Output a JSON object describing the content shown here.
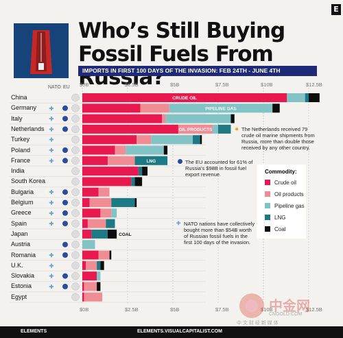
{
  "header": {
    "logo_letter": "E",
    "title_line1": "Who’s Still Buying",
    "title_line2": "Fossil Fuels From Russia?",
    "subtitle": "IMPORTS IN FIRST 100 DAYS OF THE INVASION:  FEB 24TH - JUNE 4TH",
    "col_nato": "NATO",
    "col_eu": "EU"
  },
  "colors": {
    "crude_oil": "#e8194f",
    "oil_products": "#f08c94",
    "pipeline_gas": "#82c3c6",
    "lng": "#1d7a85",
    "coal": "#0d0d0d",
    "nato_marker": "#6ba6d6",
    "eu_marker": "#2a4c9a",
    "subtitle_bg": "#1e2a77"
  },
  "chart_data": {
    "type": "bar",
    "orientation": "horizontal",
    "stacked": true,
    "title": "Who’s Still Buying Fossil Fuels From Russia?",
    "subtitle": "IMPORTS IN FIRST 100 DAYS OF THE INVASION:  FEB 24TH - JUNE 4TH",
    "xlim": [
      0,
      13
    ],
    "x_ticks": [
      "$0B",
      "$2.5B",
      "$5B",
      "$7.5B",
      "$10B",
      "$12.5B"
    ],
    "categories": [
      "China",
      "Germany",
      "Italy",
      "Netherlands",
      "Turkey",
      "Poland",
      "France",
      "India",
      "South Korea",
      "Bulgaria",
      "Belgium",
      "Greece",
      "Spain",
      "Japan",
      "Austria",
      "Romania",
      "U.K.",
      "Slovakia",
      "Estonia",
      "Egypt"
    ],
    "nato": [
      false,
      true,
      true,
      true,
      true,
      true,
      true,
      false,
      false,
      true,
      true,
      true,
      true,
      false,
      false,
      true,
      true,
      true,
      true,
      false
    ],
    "eu": [
      false,
      true,
      true,
      true,
      false,
      true,
      true,
      false,
      false,
      true,
      true,
      true,
      true,
      false,
      true,
      true,
      false,
      true,
      true,
      false
    ],
    "series": [
      {
        "name": "Crude oil",
        "values": [
          11.3,
          3.2,
          4.4,
          5.3,
          3.0,
          1.8,
          1.4,
          3.1,
          2.7,
          0.9,
          0.4,
          1.0,
          0.3,
          0.5,
          0.0,
          0.9,
          0.2,
          0.8,
          0.1,
          0.1
        ]
      },
      {
        "name": "Oil products",
        "values": [
          0.0,
          1.6,
          0.2,
          1.9,
          0.8,
          0.6,
          1.5,
          0.0,
          0.0,
          0.6,
          1.2,
          0.6,
          1.0,
          0.0,
          0.0,
          0.6,
          0.6,
          0.0,
          0.7,
          1.0
        ]
      },
      {
        "name": "Pipeline gas",
        "values": [
          1.0,
          5.7,
          3.6,
          0.3,
          2.3,
          2.1,
          0.0,
          0.0,
          0.0,
          0.0,
          0.0,
          0.3,
          0.0,
          0.0,
          0.7,
          0.0,
          0.0,
          0.2,
          0.0,
          0.0
        ]
      },
      {
        "name": "LNG",
        "values": [
          0.2,
          0.0,
          0.0,
          0.7,
          0.4,
          0.0,
          1.8,
          0.2,
          0.2,
          0.0,
          1.3,
          0.0,
          0.5,
          0.9,
          0.0,
          0.0,
          0.2,
          0.0,
          0.0,
          0.0
        ]
      },
      {
        "name": "Coal",
        "values": [
          0.6,
          0.4,
          0.2,
          0.0,
          0.1,
          0.2,
          0.0,
          0.3,
          0.4,
          0.0,
          0.1,
          0.0,
          0.0,
          0.5,
          0.0,
          0.1,
          0.2,
          0.0,
          0.2,
          0.0
        ]
      }
    ],
    "bar_labels": [
      {
        "row": 0,
        "series": 0,
        "text": "CRUDE OIL"
      },
      {
        "row": 1,
        "series": 2,
        "text": "PIPELINE GAS"
      },
      {
        "row": 3,
        "series": 1,
        "text": "OIL PRODUCTS"
      },
      {
        "row": 6,
        "series": 3,
        "text": "LNG"
      },
      {
        "row": 13,
        "series": 4,
        "text": "COAL"
      }
    ],
    "legend_title": "Commodity:",
    "legend_position": "right"
  },
  "notes": {
    "netherlands": "The Netherlands received 79 crude oil marine shipments from Russia, more than double those received by any other country.",
    "eu": "The EU accounted for 61% of Russia’s $98B in fossil fuel export revenue.",
    "nato": "NATO nations have collectively bought more than $54B worth of Russian fossil fuels in the first 100 days of the invasion."
  },
  "footer": {
    "brand": "ELEMENTS",
    "site": "ELEMENTS.VISUALCAPITALIST.COM"
  },
  "watermark": {
    "cn": "中金网",
    "domain": "CNGOLD.COM",
    "tagline": "中 文 财 经 新 媒 体"
  }
}
